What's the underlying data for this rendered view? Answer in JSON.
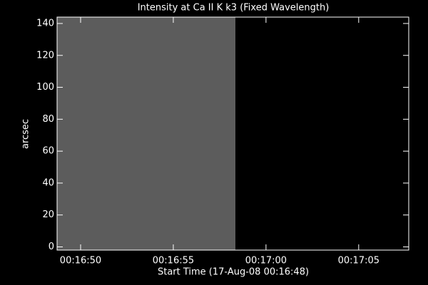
{
  "chart_data": {
    "type": "image",
    "title": "Intensity at Ca II K k3 (Fixed Wavelength)",
    "x_label": "Start Time (17-Aug-08 00:16:48)",
    "y_label": "arcsec",
    "image": {
      "x": [
        0.73,
        10.35
      ],
      "y": [
        -2,
        144
      ],
      "color": "#5c5c5c"
    },
    "xlim": [
      0.73,
      19.7
    ],
    "xticks": [
      {
        "value": 2,
        "label": "00:16:50"
      },
      {
        "value": 7,
        "label": "00:16:55"
      },
      {
        "value": 12,
        "label": "00:17:00"
      },
      {
        "value": 17,
        "label": "00:17:05"
      }
    ],
    "ylim": [
      -2,
      144
    ],
    "yticks": [
      0,
      20,
      40,
      60,
      80,
      100,
      120,
      140
    ],
    "background": "#000000",
    "foreground": "#ffffff"
  }
}
